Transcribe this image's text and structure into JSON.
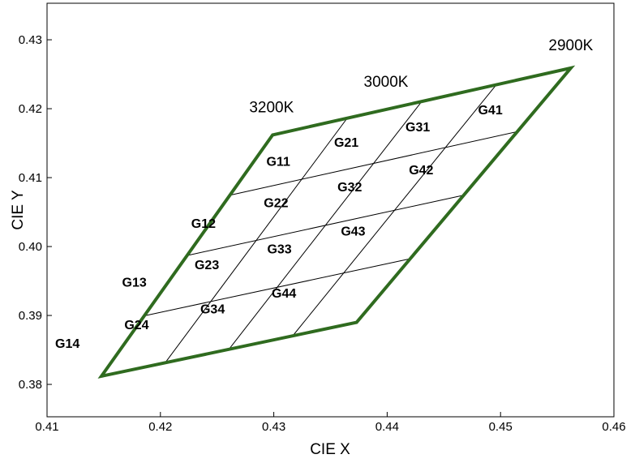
{
  "chart_data": {
    "type": "scatter",
    "xlabel": "CIE X",
    "ylabel": "CIE Y",
    "xlim": [
      0.41,
      0.46
    ],
    "ylim": [
      0.3753,
      0.4353
    ],
    "x_ticks": [
      "0.41",
      "0.42",
      "0.43",
      "0.44",
      "0.45",
      "0.46"
    ],
    "y_ticks": [
      "0.38",
      "0.39",
      "0.40",
      "0.41",
      "0.42",
      "0.43"
    ],
    "x_tick_values": [
      0.41,
      0.42,
      0.43,
      0.44,
      0.45,
      0.46
    ],
    "y_tick_values": [
      0.38,
      0.39,
      0.4,
      0.41,
      0.42,
      0.43
    ],
    "grid": false,
    "outline_color": "#2f6b1f",
    "outline": {
      "corners": {
        "top_left": [
          0.4299,
          0.4162
        ],
        "top_right": [
          0.4562,
          0.4259
        ],
        "bottom_right": [
          0.4373,
          0.389
        ],
        "bottom_left": [
          0.4148,
          0.3812
        ]
      }
    },
    "cct_labels": [
      {
        "text": "3200K",
        "x": 0.4298,
        "y": 0.4195
      },
      {
        "text": "3000K",
        "x": 0.4399,
        "y": 0.4232
      },
      {
        "text": "2900K",
        "x": 0.4562,
        "y": 0.4285
      }
    ],
    "bins": [
      {
        "name": "G11",
        "x": 0.4304,
        "y": 0.4124
      },
      {
        "name": "G12",
        "x": 0.4238,
        "y": 0.4034
      },
      {
        "name": "G13",
        "x": 0.4177,
        "y": 0.3949
      },
      {
        "name": "G14",
        "x": 0.4118,
        "y": 0.386
      },
      {
        "name": "G21",
        "x": 0.4364,
        "y": 0.4152
      },
      {
        "name": "G22",
        "x": 0.4302,
        "y": 0.4064
      },
      {
        "name": "G23",
        "x": 0.4241,
        "y": 0.3974
      },
      {
        "name": "G24",
        "x": 0.4179,
        "y": 0.3887
      },
      {
        "name": "G31",
        "x": 0.4427,
        "y": 0.4174
      },
      {
        "name": "G32",
        "x": 0.4367,
        "y": 0.4087
      },
      {
        "name": "G33",
        "x": 0.4305,
        "y": 0.3997
      },
      {
        "name": "G34",
        "x": 0.4246,
        "y": 0.391
      },
      {
        "name": "G41",
        "x": 0.4491,
        "y": 0.4199
      },
      {
        "name": "G42",
        "x": 0.443,
        "y": 0.4112
      },
      {
        "name": "G43",
        "x": 0.437,
        "y": 0.4023
      },
      {
        "name": "G44",
        "x": 0.4309,
        "y": 0.3933
      }
    ]
  }
}
